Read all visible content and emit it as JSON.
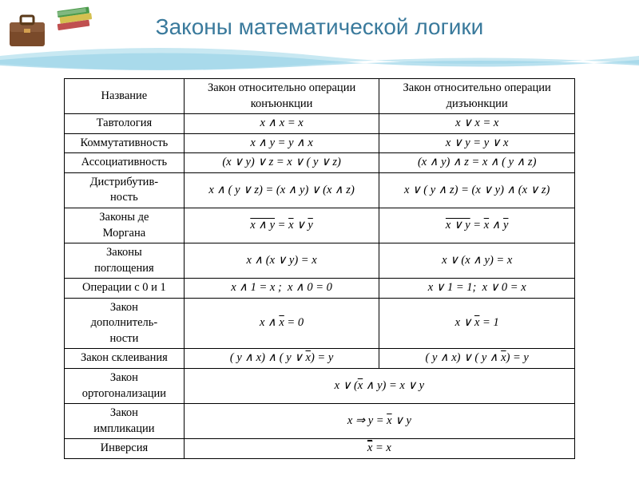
{
  "title": "Законы математической логики",
  "colors": {
    "title": "#3a7a9c",
    "wave1": "#9bd4e8",
    "wave2": "#c8e8f2",
    "border": "#000000",
    "bg": "#ffffff",
    "briefcase": "#7a4a2a",
    "book_green": "#4a9a4a",
    "book_yellow": "#d4c050",
    "book_red": "#c05050"
  },
  "headers": {
    "name": "Название",
    "conj": "Закон относительно операции конъюнкции",
    "disj": "Закон относительно операции  дизъюнкции"
  },
  "rows": [
    {
      "name": "Тавтология",
      "conj": "<span class='formula'>x ∧ x = x</span>",
      "disj": "<span class='formula'>x ∨ x = x</span>"
    },
    {
      "name": "Коммутативность",
      "conj": "<span class='formula'>x ∧ y = y ∧ x</span>",
      "disj": "<span class='formula'>x ∨ y = y ∨ x</span>"
    },
    {
      "name": "Ассоциативность",
      "conj": "<span class='formula'>(x ∨ y) ∨ z = x ∨ ( y ∨ z)</span>",
      "disj": "<span class='formula'>(x ∧ y) ∧ z = x ∧ ( y ∧ z)</span>"
    },
    {
      "name": "Дистрибутив-<br>ность",
      "conj": "<span class='formula'>x ∧ ( y ∨ z) = (x ∧ y) ∨ (x ∧ z)</span>",
      "disj": "<span class='formula'>x ∨ ( y ∧ z) = (x ∨ y) ∧ (x ∨ z)</span>"
    },
    {
      "name": "Законы де<br>Моргана",
      "conj": "<span class='formula'><span class='ov'>x ∧ y</span> = <span class='ov'>x</span> ∨ <span class='ov'>y</span></span>",
      "disj": "<span class='formula'><span class='ov'>x ∨ y</span> = <span class='ov'>x</span> ∧ <span class='ov'>y</span></span>"
    },
    {
      "name": "Законы<br>поглощения",
      "conj": "<span class='formula'>x ∧ (x ∨ y) = x</span>",
      "disj": "<span class='formula'>x ∨ (x ∧ y) = x</span>"
    },
    {
      "name": "Операции с 0 и 1",
      "conj": "<span class='formula'>x ∧ 1 = x ;&nbsp;&nbsp;x ∧ 0 = 0</span>",
      "disj": "<span class='formula'>x ∨ 1 = 1;&nbsp;&nbsp;x ∨ 0 = x</span>"
    },
    {
      "name": "Закон<br>дополнитель-<br>ности",
      "conj": "<span class='formula'>x ∧ <span class='ov'>x</span> = 0</span>",
      "disj": "<span class='formula'>x ∨ <span class='ov'>x</span> = 1</span>"
    },
    {
      "name": "Закон склеивания",
      "conj": "<span class='formula'>( y ∧ x) ∧ ( y ∨ <span class='ov'>x</span>) = y</span>",
      "disj": "<span class='formula'>( y ∧ x) ∨ ( y ∧ <span class='ov'>x</span>) = y</span>"
    },
    {
      "name": "Закон<br>ортогонализации",
      "span": "<span class='formula'>x ∨ (<span class='ov'>x</span> ∧ y) = x ∨ y</span>"
    },
    {
      "name": "Закон<br>импликации",
      "span": "<span class='formula'>x ⇒ y = <span class='ov'>x</span> ∨ y</span>"
    },
    {
      "name": "Инверсия",
      "span": "<span class='formula'><span style='text-decoration:overline'><span style='border-top:1px solid #000;padding-top:1px'>x</span></span> = x</span>"
    }
  ]
}
